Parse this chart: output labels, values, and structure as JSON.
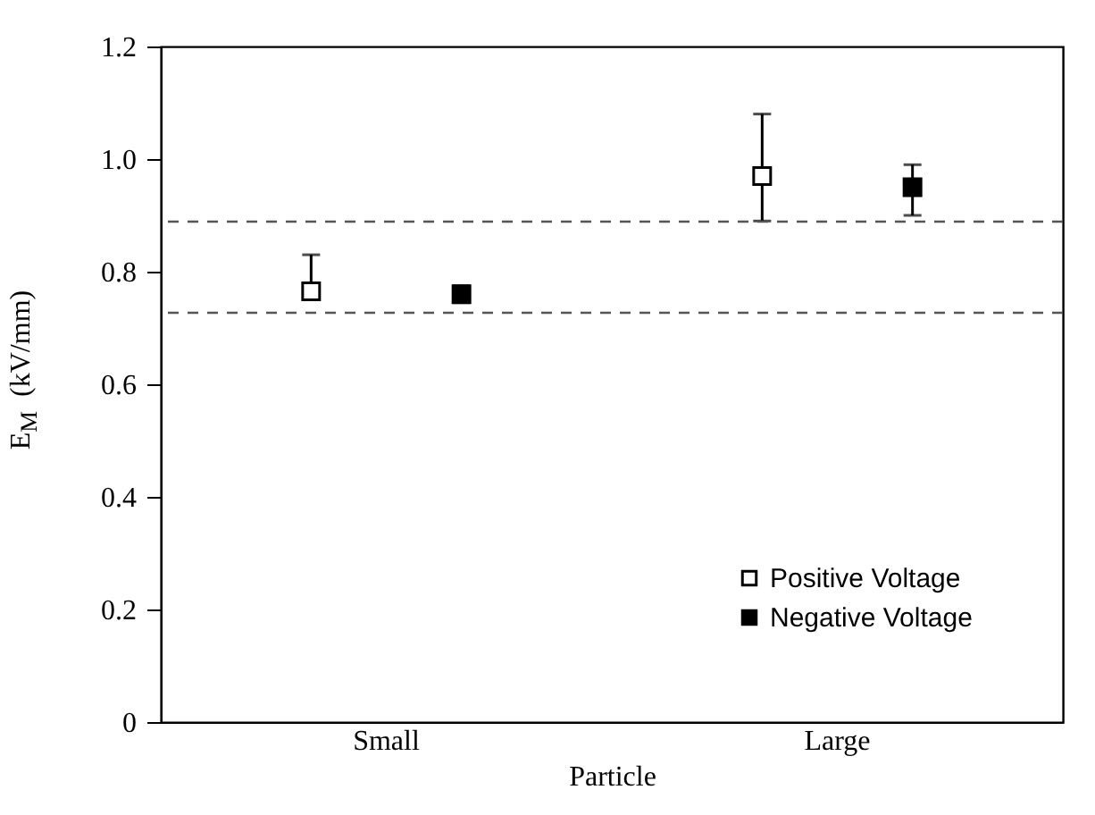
{
  "chart_data": {
    "type": "scatter",
    "xlabel": "Particle",
    "ylabel": "E$_{M}$  (kV/mm)",
    "categories": [
      "Small",
      "Large"
    ],
    "series": [
      {
        "name": "Positive Voltage",
        "color": "#000000",
        "x": [
          "Small",
          "Large"
        ],
        "values": [
          0.765,
          0.97
        ],
        "errors": [
          [
            0.75,
            0.83
          ],
          [
            0.89,
            1.08
          ]
        ]
      },
      {
        "name": "Negative Voltage",
        "color": "#000000",
        "x": [
          "Small",
          "Large"
        ],
        "values": [
          0.76,
          0.95
        ],
        "errors": [
          [
            0.745,
            0.775
          ],
          [
            0.9,
            0.99
          ]
        ]
      }
    ],
    "ylim": [
      0,
      1.2
    ],
    "yticks": [
      0,
      0.2,
      0.4,
      0.6,
      0.8,
      {
        "value": 1,
        "label": "1.0"
      },
      1.2
    ],
    "ref_lines": [
      {
        "axis": "y",
        "value": 0.889,
        "line_style": "dashed"
      },
      {
        "axis": "y",
        "value": 0.727,
        "line_style": "dashed"
      }
    ],
    "marker": "square",
    "legend": "bottom right",
    "grid": false
  }
}
